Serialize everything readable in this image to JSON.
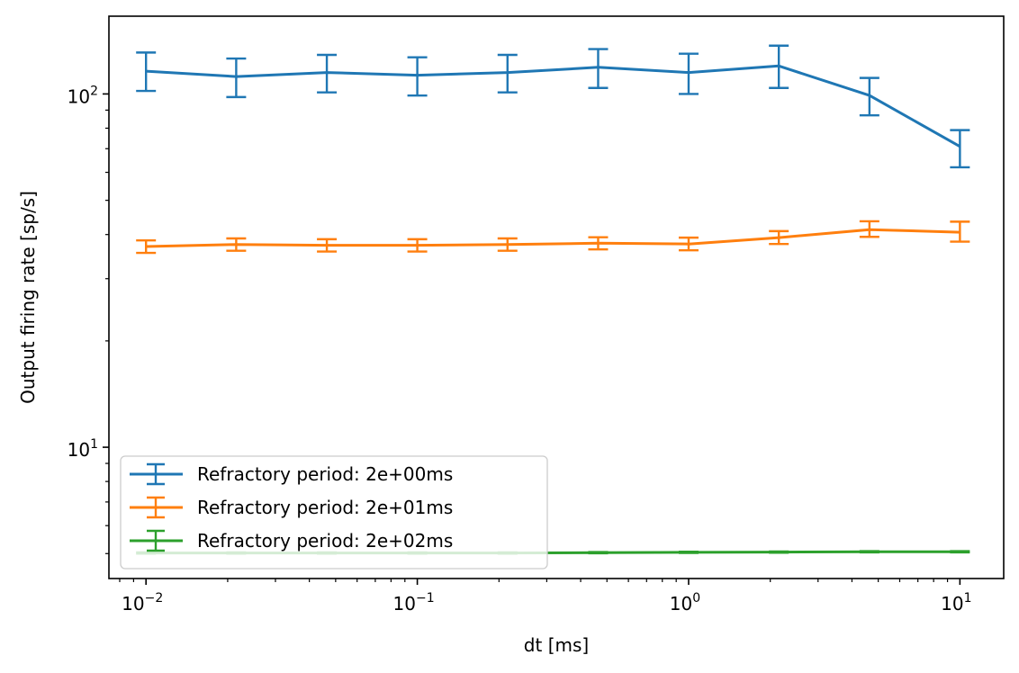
{
  "chart_data": {
    "type": "line",
    "title": "",
    "xlabel": "dt [ms]",
    "ylabel": "Output firing rate [sp/s]",
    "xscale": "log",
    "yscale": "log",
    "xlim": [
      0.0073,
      14.5
    ],
    "ylim": [
      4.25,
      166
    ],
    "x_ticks": [
      {
        "value": 0.01,
        "base": "10",
        "exp": "−2"
      },
      {
        "value": 0.1,
        "base": "10",
        "exp": "−1"
      },
      {
        "value": 1,
        "base": "10",
        "exp": "0"
      },
      {
        "value": 10,
        "base": "10",
        "exp": "1"
      }
    ],
    "y_ticks": [
      {
        "value": 10,
        "base": "10",
        "exp": "1"
      },
      {
        "value": 100,
        "base": "10",
        "exp": "2"
      }
    ],
    "grid": false,
    "legend_position": "lower-left",
    "x": [
      0.01,
      0.0215,
      0.0464,
      0.1,
      0.215,
      0.464,
      1.0,
      2.15,
      4.64,
      10.0
    ],
    "series": [
      {
        "name": "Refractory period: 2e+00ms",
        "color": "#1f77b4",
        "values": [
          116,
          112,
          115,
          113,
          115,
          119,
          115,
          120,
          99,
          71
        ],
        "lower": [
          102,
          98,
          101,
          99,
          101,
          104,
          100,
          104,
          87,
          62
        ],
        "upper": [
          131,
          126,
          129,
          127,
          129,
          134,
          130,
          137,
          111,
          79
        ]
      },
      {
        "name": "Refractory period: 2e+01ms",
        "color": "#ff7f0e",
        "values": [
          37.0,
          37.5,
          37.3,
          37.3,
          37.5,
          37.8,
          37.6,
          39.2,
          41.3,
          40.6
        ],
        "lower": [
          35.5,
          36.0,
          35.8,
          35.8,
          36.0,
          36.3,
          36.1,
          37.6,
          39.4,
          38.2
        ],
        "upper": [
          38.5,
          39.0,
          38.8,
          38.8,
          39.0,
          39.3,
          39.2,
          40.9,
          43.6,
          43.5
        ]
      },
      {
        "name": "Refractory period: 2e+02ms",
        "color": "#2ca02c",
        "values": [
          5.02,
          5.02,
          5.02,
          5.02,
          5.02,
          5.03,
          5.04,
          5.05,
          5.06,
          5.06
        ],
        "lower": [
          5.0,
          5.0,
          5.0,
          5.0,
          5.0,
          5.01,
          5.02,
          5.03,
          5.04,
          5.04
        ],
        "upper": [
          5.04,
          5.04,
          5.04,
          5.04,
          5.04,
          5.05,
          5.06,
          5.07,
          5.08,
          5.08
        ]
      }
    ]
  }
}
